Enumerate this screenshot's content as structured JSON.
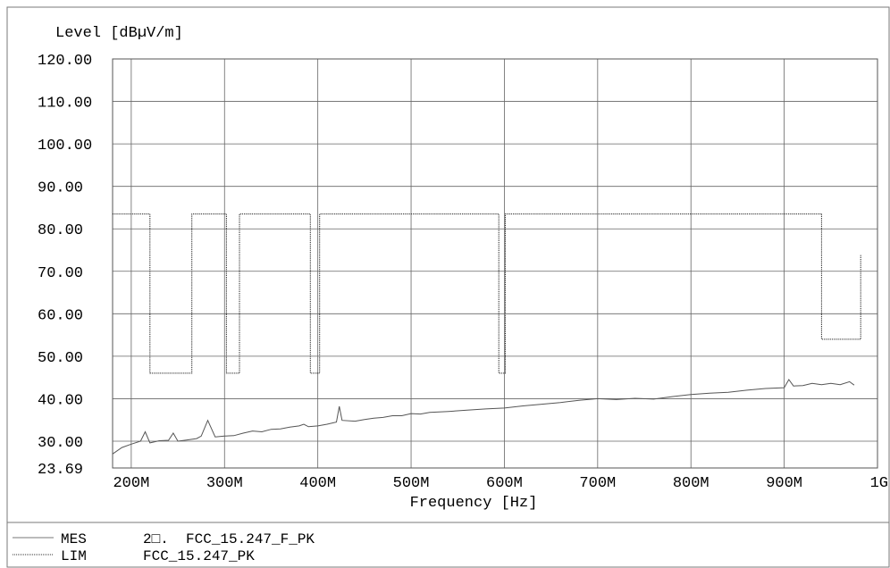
{
  "chart_data": {
    "type": "line",
    "ylabel": "Level [dBµV/m]",
    "xlabel": "Frequency [Hz]",
    "ylim": [
      23.69,
      120
    ],
    "xlim": [
      180,
      1000
    ],
    "y_ticks": [
      {
        "value": 120,
        "label": "120.00"
      },
      {
        "value": 110,
        "label": "110.00"
      },
      {
        "value": 100,
        "label": "100.00"
      },
      {
        "value": 90,
        "label": "90.00"
      },
      {
        "value": 80,
        "label": "80.00"
      },
      {
        "value": 70,
        "label": "70.00"
      },
      {
        "value": 60,
        "label": "60.00"
      },
      {
        "value": 50,
        "label": "50.00"
      },
      {
        "value": 40,
        "label": "40.00"
      },
      {
        "value": 30,
        "label": "30.00"
      },
      {
        "value": 23.69,
        "label": "23.69"
      }
    ],
    "x_ticks": [
      {
        "value": 200,
        "label": "200M"
      },
      {
        "value": 300,
        "label": "300M"
      },
      {
        "value": 400,
        "label": "400M"
      },
      {
        "value": 500,
        "label": "500M"
      },
      {
        "value": 600,
        "label": "600M"
      },
      {
        "value": 700,
        "label": "700M"
      },
      {
        "value": 800,
        "label": "800M"
      },
      {
        "value": 900,
        "label": "900M"
      },
      {
        "value": 1000,
        "label": "1G"
      }
    ],
    "grid": true,
    "series": [
      {
        "name": "LIM",
        "style": "dotted",
        "step": true,
        "points": [
          [
            180,
            83.5
          ],
          [
            220,
            83.5
          ],
          [
            220,
            46
          ],
          [
            265,
            46
          ],
          [
            265,
            83.5
          ],
          [
            302,
            83.5
          ],
          [
            302,
            46
          ],
          [
            316,
            46
          ],
          [
            316,
            83.5
          ],
          [
            392,
            83.5
          ],
          [
            392,
            46
          ],
          [
            402,
            46
          ],
          [
            402,
            83.5
          ],
          [
            594,
            83.5
          ],
          [
            594,
            46
          ],
          [
            601,
            46
          ],
          [
            601,
            83.5
          ],
          [
            940,
            83.5
          ],
          [
            940,
            54
          ],
          [
            982,
            54
          ],
          [
            982,
            74
          ]
        ]
      },
      {
        "name": "MES",
        "style": "solid",
        "points": [
          [
            180,
            27.0
          ],
          [
            190,
            28.5
          ],
          [
            200,
            29.3
          ],
          [
            210,
            30.0
          ],
          [
            215,
            32.2
          ],
          [
            220,
            29.6
          ],
          [
            230,
            30.1
          ],
          [
            240,
            30.2
          ],
          [
            245,
            31.9
          ],
          [
            250,
            30.0
          ],
          [
            260,
            30.3
          ],
          [
            270,
            30.6
          ],
          [
            275,
            31.2
          ],
          [
            282,
            34.9
          ],
          [
            290,
            31.0
          ],
          [
            300,
            31.2
          ],
          [
            310,
            31.3
          ],
          [
            320,
            31.9
          ],
          [
            330,
            32.4
          ],
          [
            340,
            32.2
          ],
          [
            350,
            32.8
          ],
          [
            360,
            32.9
          ],
          [
            370,
            33.3
          ],
          [
            380,
            33.6
          ],
          [
            385,
            34.0
          ],
          [
            390,
            33.4
          ],
          [
            400,
            33.6
          ],
          [
            410,
            34.0
          ],
          [
            420,
            34.5
          ],
          [
            423,
            38.2
          ],
          [
            426,
            34.9
          ],
          [
            440,
            34.7
          ],
          [
            450,
            35.1
          ],
          [
            460,
            35.4
          ],
          [
            470,
            35.6
          ],
          [
            480,
            36.0
          ],
          [
            490,
            36.0
          ],
          [
            500,
            36.5
          ],
          [
            510,
            36.4
          ],
          [
            520,
            36.8
          ],
          [
            540,
            37.0
          ],
          [
            560,
            37.3
          ],
          [
            580,
            37.6
          ],
          [
            600,
            37.8
          ],
          [
            620,
            38.3
          ],
          [
            640,
            38.7
          ],
          [
            660,
            39.1
          ],
          [
            680,
            39.6
          ],
          [
            700,
            40.0
          ],
          [
            720,
            39.8
          ],
          [
            740,
            40.1
          ],
          [
            760,
            39.9
          ],
          [
            780,
            40.5
          ],
          [
            800,
            41.0
          ],
          [
            820,
            41.3
          ],
          [
            840,
            41.5
          ],
          [
            860,
            42.0
          ],
          [
            880,
            42.4
          ],
          [
            900,
            42.6
          ],
          [
            905,
            44.5
          ],
          [
            910,
            43.0
          ],
          [
            920,
            43.1
          ],
          [
            930,
            43.6
          ],
          [
            940,
            43.3
          ],
          [
            950,
            43.6
          ],
          [
            960,
            43.3
          ],
          [
            970,
            44.0
          ],
          [
            975,
            43.2
          ]
        ]
      }
    ]
  },
  "legend": [
    {
      "key": "MES",
      "text": "2□.  FCC_15.247_F_PK"
    },
    {
      "key": "LIM",
      "text": "FCC_15.247_PK"
    }
  ]
}
